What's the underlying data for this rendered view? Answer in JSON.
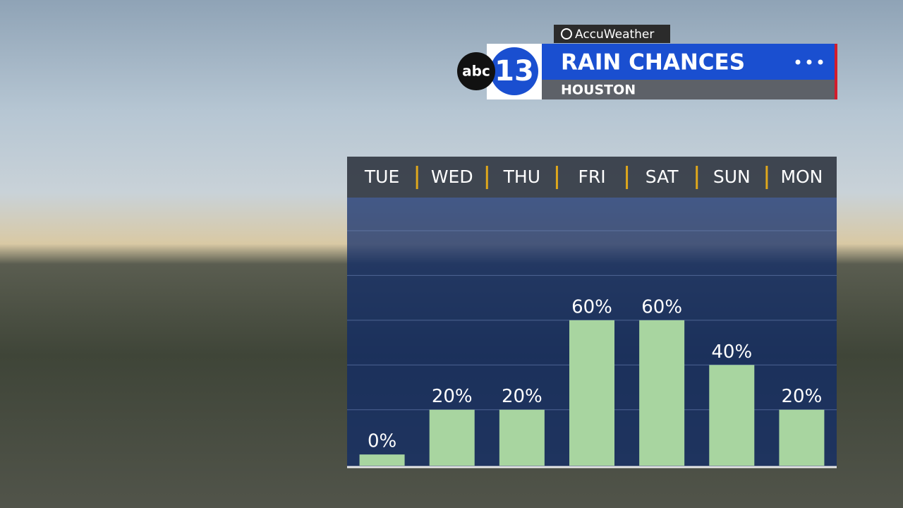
{
  "brand": {
    "accuweather": "AccuWeather",
    "network": "abc",
    "channel": "13"
  },
  "chart_data": {
    "type": "bar",
    "title": "RAIN CHANCES",
    "subtitle": "HOUSTON",
    "categories": [
      "TUE",
      "WED",
      "THU",
      "FRI",
      "SAT",
      "SUN",
      "MON"
    ],
    "values": [
      0,
      20,
      20,
      60,
      60,
      40,
      20
    ],
    "value_labels": [
      "0%",
      "20%",
      "20%",
      "60%",
      "60%",
      "40%",
      "20%"
    ],
    "color": "#a8d5a0",
    "ylim": [
      -5,
      100
    ],
    "yticks": [
      20,
      40,
      60,
      80,
      100
    ],
    "grid": true
  }
}
